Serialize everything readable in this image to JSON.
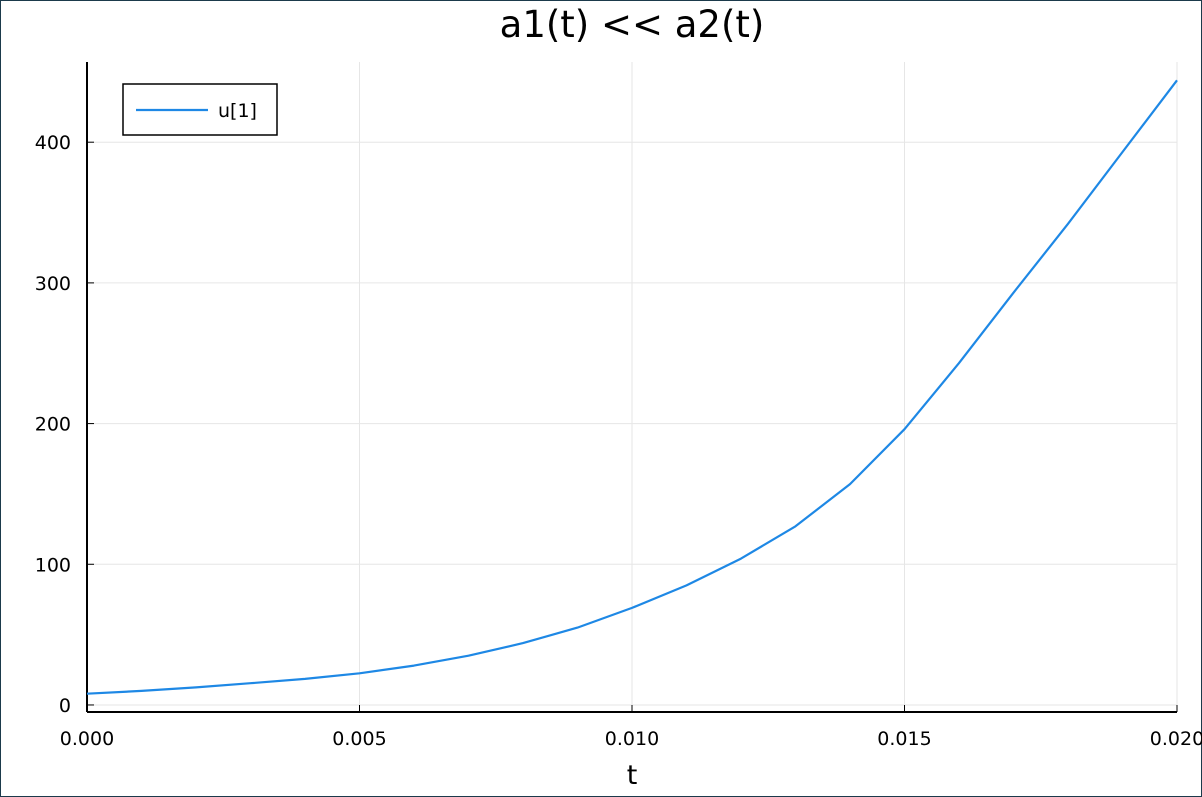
{
  "chart_data": {
    "type": "line",
    "title": "a1(t) << a2(t)",
    "xlabel": "t",
    "ylabel": "",
    "xlim": [
      0.0,
      0.02
    ],
    "ylim": [
      -5,
      457
    ],
    "x_ticks": [
      0.0,
      0.005,
      0.01,
      0.015,
      0.02
    ],
    "x_tick_labels": [
      "0.000",
      "0.005",
      "0.010",
      "0.015",
      "0.020"
    ],
    "y_ticks": [
      0,
      100,
      200,
      300,
      400
    ],
    "y_tick_labels": [
      "0",
      "100",
      "200",
      "300",
      "400"
    ],
    "grid": true,
    "legend_position": "top-left",
    "series": [
      {
        "name": "u[1]",
        "color": "#1e88e5",
        "x": [
          0.0,
          0.001,
          0.002,
          0.003,
          0.004,
          0.005,
          0.006,
          0.007,
          0.008,
          0.009,
          0.01,
          0.011,
          0.012,
          0.013,
          0.014,
          0.015,
          0.016,
          0.017,
          0.018,
          0.019,
          0.02
        ],
        "y": [
          8,
          10,
          12.5,
          15.5,
          18.5,
          22.5,
          28,
          35,
          44,
          55,
          69,
          85,
          104,
          127,
          157,
          196,
          243,
          293,
          342,
          393,
          444
        ]
      }
    ]
  }
}
